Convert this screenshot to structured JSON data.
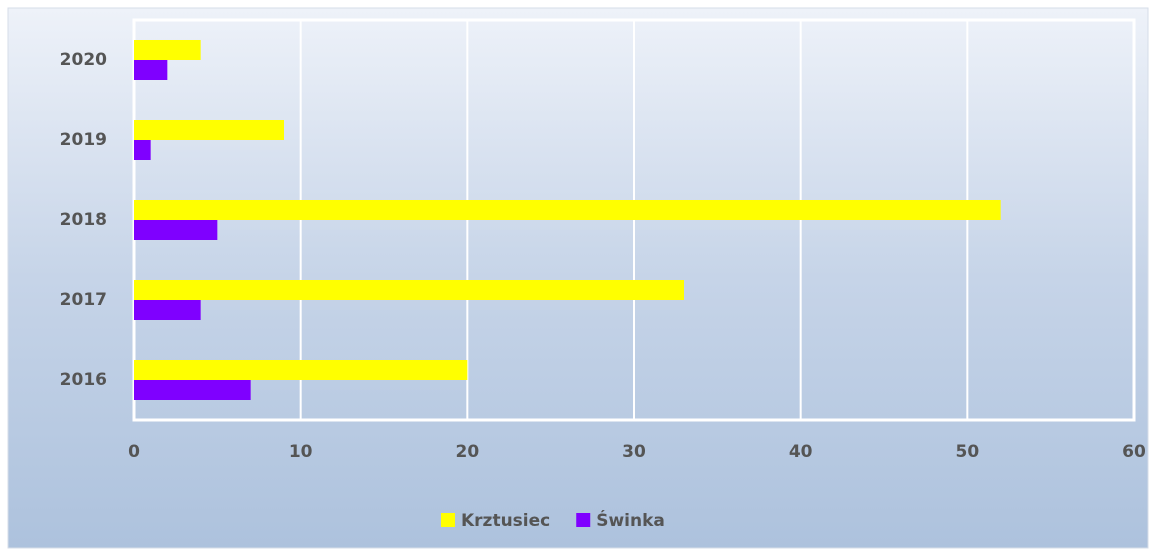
{
  "chart_data": {
    "type": "hbar",
    "categories": [
      "2016",
      "2017",
      "2018",
      "2019",
      "2020"
    ],
    "series": [
      {
        "name": "Krztusiec",
        "color": "#ffff00",
        "values": [
          20,
          33,
          52,
          9,
          4
        ]
      },
      {
        "name": "Świnka",
        "color": "#7f00ff",
        "values": [
          7,
          4,
          5,
          1,
          2
        ]
      }
    ],
    "xlim": [
      0,
      60
    ],
    "xticks": [
      0,
      10,
      20,
      30,
      40,
      50,
      60
    ],
    "grid": true,
    "legend": "bottom"
  }
}
